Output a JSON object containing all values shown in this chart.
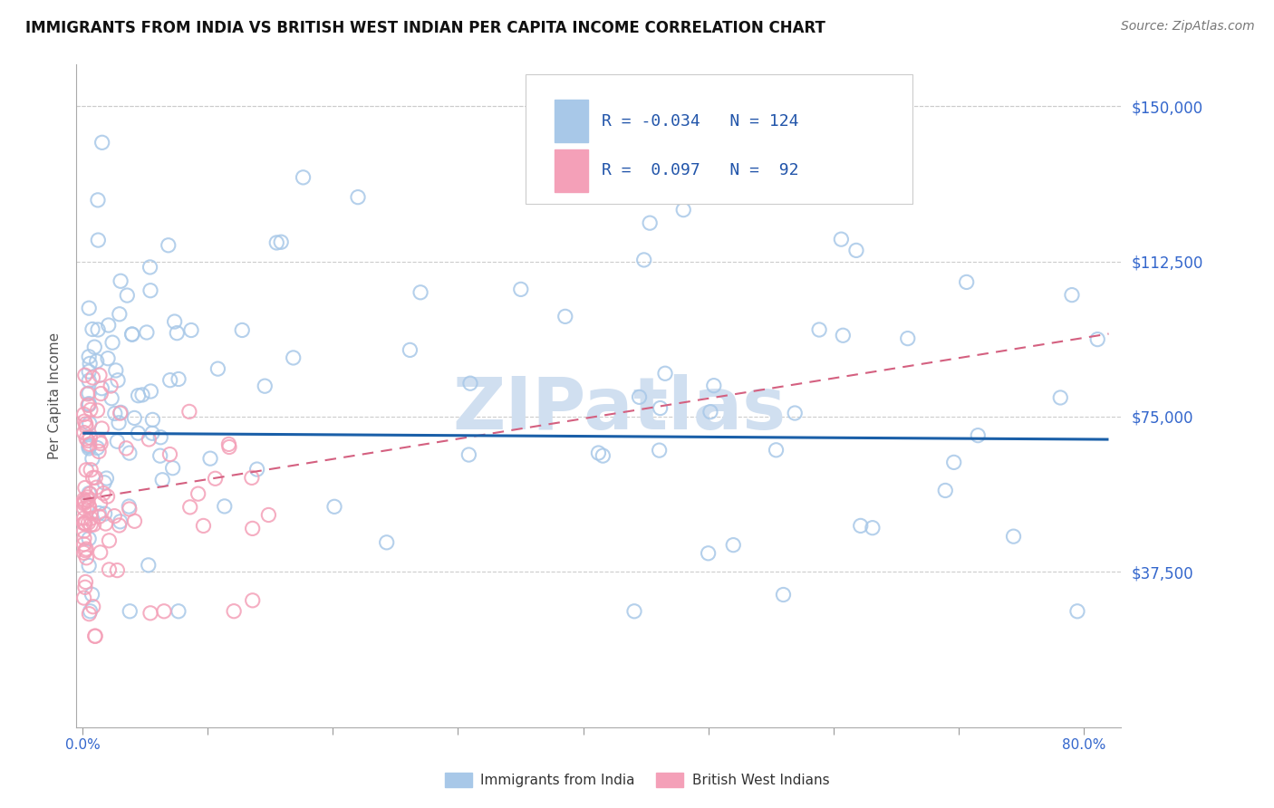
{
  "title": "IMMIGRANTS FROM INDIA VS BRITISH WEST INDIAN PER CAPITA INCOME CORRELATION CHART",
  "source": "Source: ZipAtlas.com",
  "ylabel": "Per Capita Income",
  "xlim": [
    -0.005,
    0.83
  ],
  "ylim": [
    0,
    160000
  ],
  "y_ticks": [
    0,
    37500,
    75000,
    112500,
    150000
  ],
  "y_tick_labels": [
    "",
    "$37,500",
    "$75,000",
    "$112,500",
    "$150,000"
  ],
  "blue_scatter_color": "#A8C8E8",
  "pink_scatter_color": "#F4A0B8",
  "blue_line_color": "#1A5FA8",
  "pink_line_color": "#D46080",
  "watermark": "ZIPatlas",
  "watermark_color": "#D0DFF0",
  "background_color": "#FFFFFF",
  "title_fontsize": 12,
  "tick_label_color": "#3366CC",
  "grid_color": "#CCCCCC",
  "india_trend_y0": 71000,
  "india_trend_y1": 69500,
  "bwi_trend_y0": 55000,
  "bwi_trend_y1": 95000,
  "india_seed": 17,
  "bwi_seed": 99
}
